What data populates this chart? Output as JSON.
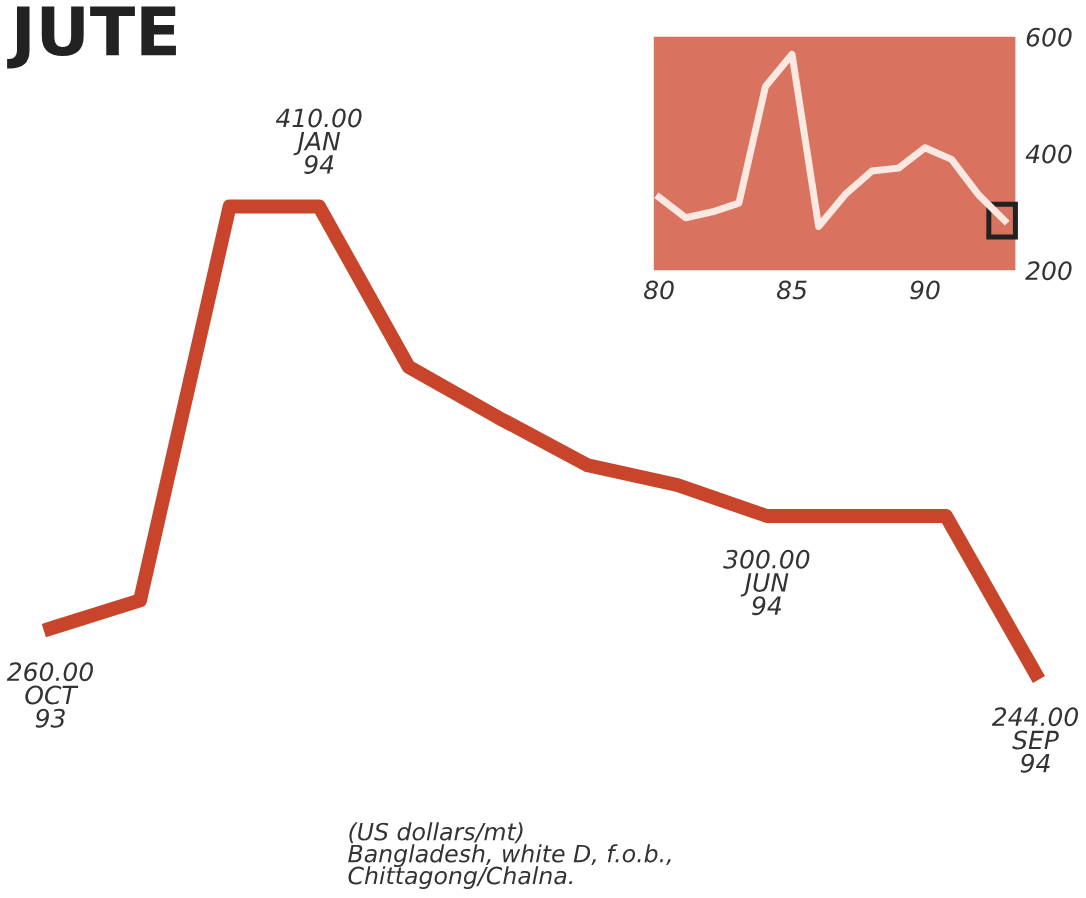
{
  "chart_data": [
    {
      "type": "line",
      "title": "JUTE",
      "categories": [
        null,
        null,
        null,
        null,
        null,
        null,
        null,
        null,
        null,
        null,
        null,
        null
      ],
      "series": [
        {
          "color": "#c8442a",
          "values": [
            260,
            270,
            410,
            410,
            353,
            335,
            318,
            311,
            300,
            300,
            300,
            244
          ],
          "value_labels": [
            "260.00\nOCT\n93",
            null,
            null,
            "410.00\nJAN\n94",
            null,
            null,
            null,
            null,
            "300.00\nJUN\n94",
            null,
            null,
            "244.00\nSEP\n94"
          ]
        }
      ],
      "annotations": [
        "(US dollars/mt)\nBangladesh, white D, f.o.b.,\nChittagong/Chalna."
      ],
      "grid": false,
      "legend": false
    },
    {
      "type": "line",
      "x": [
        80,
        81,
        82,
        83,
        84,
        85,
        86,
        87,
        88,
        89,
        90,
        91,
        92,
        93
      ],
      "series": [
        {
          "color": "#fbe9e1",
          "values": [
            325,
            290,
            300,
            315,
            515,
            570,
            275,
            330,
            370,
            375,
            410,
            390,
            330,
            285
          ]
        }
      ],
      "xlim": [
        79.8,
        93.4
      ],
      "ylim": [
        200,
        600
      ],
      "xticks": [
        80,
        85,
        90
      ],
      "yticks": [
        200,
        400,
        600
      ],
      "grid": false,
      "legend": false
    }
  ]
}
